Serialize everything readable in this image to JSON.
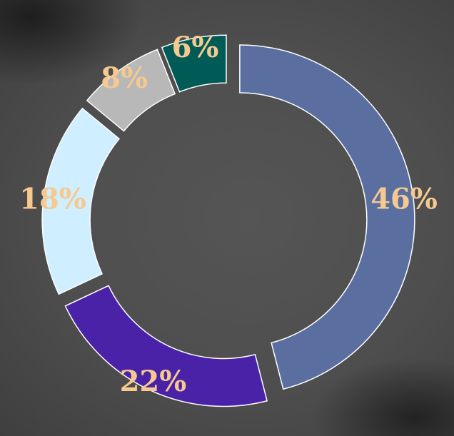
{
  "chart_data": {
    "type": "pie",
    "variant": "exploded-donut",
    "start_angle_deg": 0,
    "direction": "clockwise",
    "slices": [
      {
        "value": 46,
        "label": "46%",
        "color": "#5a6fa0"
      },
      {
        "value": 22,
        "label": "22%",
        "color": "#4a22a8"
      },
      {
        "value": 18,
        "label": "18%",
        "color": "#cfeeff"
      },
      {
        "value": 8,
        "label": "8%",
        "color": "#b8b8b8"
      },
      {
        "value": 6,
        "label": "6%",
        "color": "#005a55"
      }
    ],
    "label_color": "#f5c98f",
    "background": "#4d4d4d"
  }
}
